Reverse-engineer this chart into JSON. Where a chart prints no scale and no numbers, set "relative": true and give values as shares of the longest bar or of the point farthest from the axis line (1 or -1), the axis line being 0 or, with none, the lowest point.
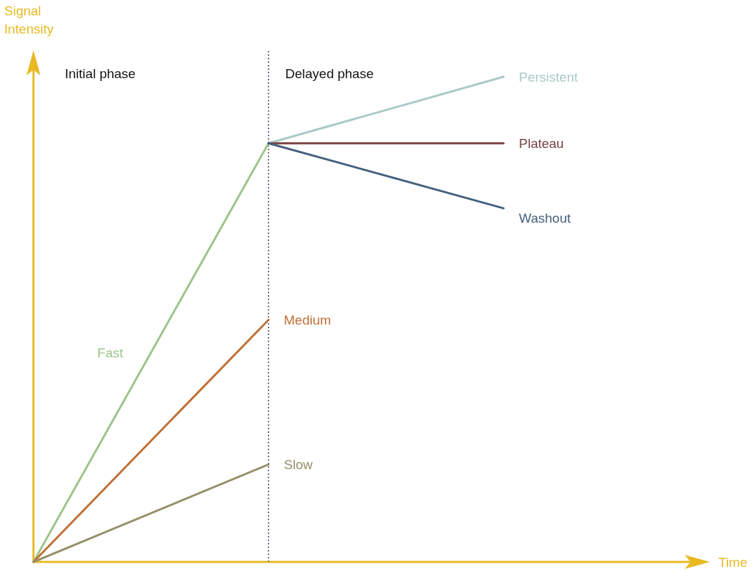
{
  "chart_data": {
    "type": "line",
    "relative": true,
    "xlabel": "Time",
    "ylabel": "Signal Intensity",
    "categories": [
      null,
      null,
      null
    ],
    "marker": "none",
    "line_style": "solid",
    "annotations": [
      "Initial phase",
      "Delayed phase"
    ],
    "ref_lines": [
      {
        "axis": "x",
        "color": "#6b7080",
        "line_style": "dotted"
      }
    ],
    "series": [
      {
        "name": "Fast",
        "color": "#9cc48a",
        "values": [
          0,
          0.863,
          null
        ]
      },
      {
        "name": "Medium",
        "color": "#bf6f35",
        "values": [
          0,
          0.499,
          null
        ]
      },
      {
        "name": "Slow",
        "color": "#95906a",
        "values": [
          0,
          0.201,
          null
        ]
      },
      {
        "name": "Persistent",
        "color": "#a9cac6",
        "values": [
          null,
          0.863,
          1
        ]
      },
      {
        "name": "Plateau",
        "color": "#7a4141",
        "values": [
          null,
          0.863,
          0.863
        ]
      },
      {
        "name": "Washout",
        "color": "#44607e",
        "values": [
          null,
          0.863,
          0.729
        ]
      }
    ]
  }
}
